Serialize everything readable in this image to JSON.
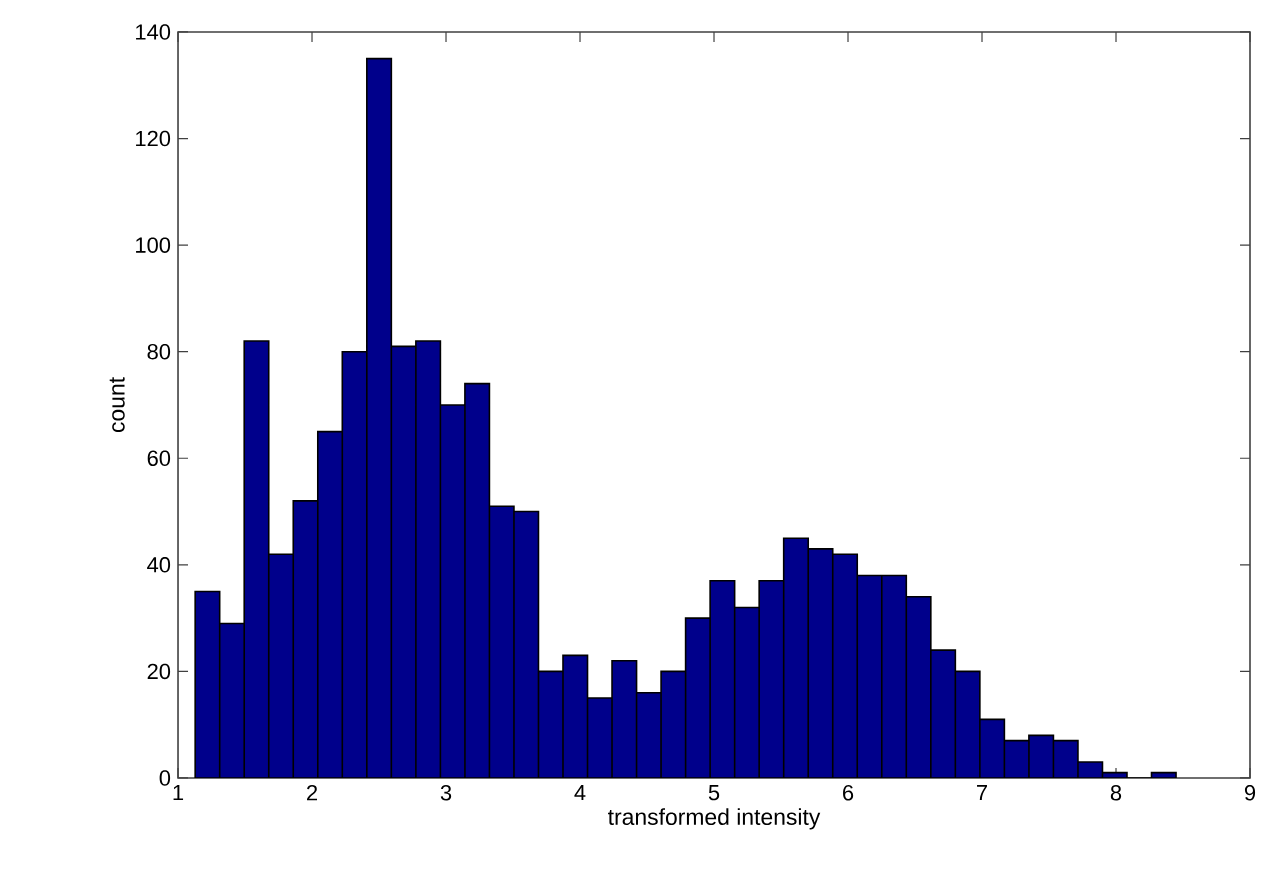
{
  "chart_data": {
    "type": "histogram",
    "xlabel": "transformed intensity",
    "ylabel": "count",
    "color": "#00008b",
    "bins": [
      1.128,
      1.311,
      1.494,
      1.677,
      1.86,
      2.043,
      2.226,
      2.409,
      2.592,
      2.775,
      2.958,
      3.141,
      3.324,
      3.507,
      3.69,
      3.873,
      4.056,
      4.239,
      4.422,
      4.605,
      4.788,
      4.971,
      5.154,
      5.337,
      5.52,
      5.703,
      5.886,
      6.069,
      6.252,
      6.435,
      6.618,
      6.801,
      6.984,
      7.167,
      7.35,
      7.533,
      7.716,
      7.899,
      8.082,
      8.265,
      8.448
    ],
    "values": [
      35,
      29,
      82,
      42,
      52,
      65,
      80,
      135,
      81,
      82,
      70,
      74,
      51,
      50,
      20,
      23,
      15,
      22,
      16,
      20,
      30,
      37,
      32,
      37,
      45,
      43,
      42,
      38,
      38,
      34,
      24,
      20,
      11,
      7,
      8,
      7,
      3,
      1,
      0,
      1
    ],
    "xlim": [
      1,
      9
    ],
    "ylim": [
      0,
      140
    ],
    "xticks": [
      1,
      2,
      3,
      4,
      5,
      6,
      7,
      8,
      9
    ],
    "yticks": [
      0,
      20,
      40,
      60,
      80,
      100,
      120,
      140
    ]
  }
}
